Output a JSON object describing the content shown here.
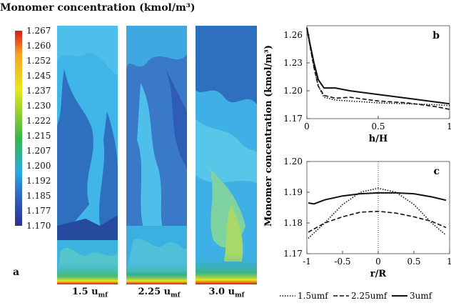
{
  "figure": {
    "title": "Monomer concentration (kmol/m³)",
    "panel_a_label": "a",
    "colorbar_ticks": [
      "1.267",
      "1.260",
      "1.252",
      "1.245",
      "1.237",
      "1.230",
      "1.222",
      "1.215",
      "1.207",
      "1.200",
      "1.192",
      "1.185",
      "1.177",
      "1.170"
    ],
    "contour_panels": [
      {
        "label_main": "1.5 u",
        "label_sub": "mf"
      },
      {
        "label_main": "2.25 u",
        "label_sub": "mf"
      },
      {
        "label_main": "3.0 u",
        "label_sub": "mf"
      }
    ],
    "colors": {
      "cb_top": "#d7191c",
      "cb_orange": "#f5a623",
      "cb_yellow": "#e8e81a",
      "cb_green": "#3ab54a",
      "cb_cyan": "#29abe2",
      "cb_blue": "#2f57b3",
      "cb_bottom": "#2e3192"
    }
  },
  "chart_data": [
    {
      "type": "line",
      "panel": "b",
      "xlabel": "h/H",
      "ylabel": "Monomer concentration (kmol/m³)",
      "xlim": [
        0,
        1
      ],
      "ylim": [
        1.17,
        1.27
      ],
      "xticks": [
        "0",
        "0.5",
        "1"
      ],
      "yticks": [
        "1.17",
        "1.20",
        "1.23",
        "1.26"
      ],
      "series": [
        {
          "name": "1.5umf",
          "style": "dotted",
          "x": [
            0,
            0.02,
            0.05,
            0.08,
            0.12,
            0.2,
            0.3,
            0.5,
            0.7,
            0.9,
            1.0
          ],
          "y": [
            1.268,
            1.25,
            1.225,
            1.205,
            1.193,
            1.19,
            1.189,
            1.187,
            1.186,
            1.185,
            1.184
          ]
        },
        {
          "name": "2.25umf",
          "style": "dashed",
          "x": [
            0,
            0.02,
            0.05,
            0.08,
            0.12,
            0.2,
            0.3,
            0.5,
            0.7,
            0.9,
            1.0
          ],
          "y": [
            1.268,
            1.25,
            1.225,
            1.205,
            1.195,
            1.192,
            1.193,
            1.189,
            1.187,
            1.183,
            1.18
          ]
        },
        {
          "name": "3umf",
          "style": "solid",
          "x": [
            0,
            0.02,
            0.05,
            0.08,
            0.12,
            0.2,
            0.3,
            0.5,
            0.7,
            0.9,
            1.0
          ],
          "y": [
            1.268,
            1.252,
            1.23,
            1.212,
            1.203,
            1.203,
            1.2,
            1.196,
            1.192,
            1.188,
            1.186
          ]
        }
      ]
    },
    {
      "type": "line",
      "panel": "c",
      "xlabel": "r/R",
      "xlim": [
        -1,
        1
      ],
      "ylim": [
        1.17,
        1.2
      ],
      "xticks": [
        "-1",
        "-0.5",
        "0",
        "0.5",
        "1"
      ],
      "yticks": [
        "1.17",
        "1.18",
        "1.19",
        "1.20"
      ],
      "series": [
        {
          "name": "1.5umf",
          "style": "dotted",
          "x": [
            -0.98,
            -0.75,
            -0.5,
            -0.25,
            0,
            0.25,
            0.5,
            0.75,
            0.95
          ],
          "y": [
            1.175,
            1.18,
            1.186,
            1.19,
            1.1913,
            1.19,
            1.186,
            1.18,
            1.176
          ]
        },
        {
          "name": "2.25umf",
          "style": "dashed",
          "x": [
            -0.98,
            -0.75,
            -0.5,
            -0.25,
            0,
            0.25,
            0.5,
            0.75,
            0.95
          ],
          "y": [
            1.177,
            1.18,
            1.182,
            1.1835,
            1.1838,
            1.1832,
            1.182,
            1.1805,
            1.1785
          ]
        },
        {
          "name": "3umf",
          "style": "solid",
          "x": [
            -0.98,
            -0.9,
            -0.75,
            -0.5,
            -0.25,
            0,
            0.25,
            0.5,
            0.75,
            0.95
          ],
          "y": [
            1.1865,
            1.1862,
            1.1875,
            1.1888,
            1.1895,
            1.1898,
            1.1898,
            1.1895,
            1.1885,
            1.1874
          ]
        }
      ]
    }
  ]
}
